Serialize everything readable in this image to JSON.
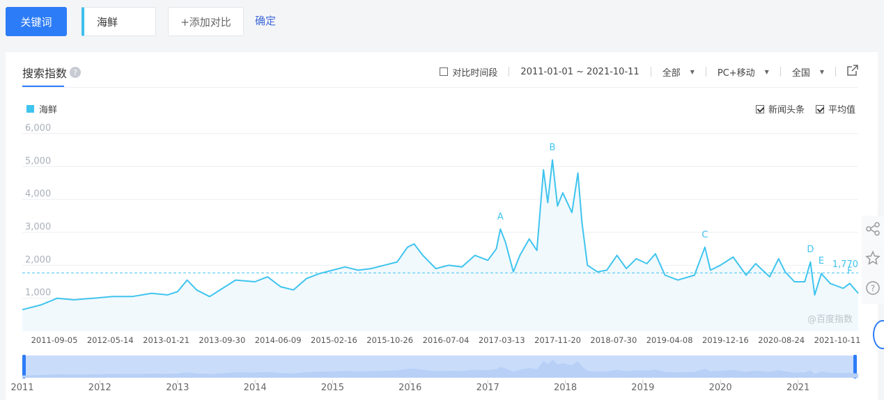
{
  "toolbar": {
    "keyword_tab": "关键词",
    "keyword_value": "海鲜",
    "add_compare": "+添加对比",
    "confirm": "确定"
  },
  "panel": {
    "title": "搜索指数",
    "help_icon": "question-icon",
    "compare_period": "对比时间段",
    "date_range": "2011-01-01 ~ 2021-10-11",
    "source": "全部",
    "device": "PC+移动",
    "region": "全国",
    "export_icon": "external-link-icon",
    "legend": "海鲜",
    "news_option": "新闻头条",
    "average_option": "平均值",
    "watermark": "@百度指数"
  },
  "colors": {
    "accent": "#2d7cf7",
    "series": "#3fc4ee",
    "fill": "#f1f9fd",
    "navigator": "#c9ddfb"
  },
  "chart_data": {
    "type": "area",
    "ylim": [
      0,
      6000
    ],
    "y_ticks": [
      "1,000",
      "2,000",
      "3,000",
      "4,000",
      "5,000",
      "6,000"
    ],
    "x_ticks": [
      "2011-09-05",
      "2012-05-14",
      "2013-01-21",
      "2013-09-30",
      "2014-06-09",
      "2015-02-16",
      "2015-10-26",
      "2016-07-04",
      "2017-03-13",
      "2017-11-20",
      "2018-07-30",
      "2019-04-08",
      "2019-12-16",
      "2020-08-24",
      "2021-10-11"
    ],
    "navigator_years": [
      "2011",
      "2012",
      "2013",
      "2014",
      "2015",
      "2016",
      "2017",
      "2018",
      "2019",
      "2020",
      "2021"
    ],
    "average": 1770,
    "average_label": "1,770",
    "series": [
      {
        "name": "海鲜",
        "points": [
          [
            "2011-01-01",
            650
          ],
          [
            "2011-04-01",
            800
          ],
          [
            "2011-06-15",
            1000
          ],
          [
            "2011-09-01",
            950
          ],
          [
            "2011-12-01",
            1000
          ],
          [
            "2012-03-01",
            1050
          ],
          [
            "2012-06-01",
            1050
          ],
          [
            "2012-09-01",
            1150
          ],
          [
            "2012-11-15",
            1100
          ],
          [
            "2013-01-01",
            1200
          ],
          [
            "2013-02-15",
            1550
          ],
          [
            "2013-04-01",
            1250
          ],
          [
            "2013-06-01",
            1050
          ],
          [
            "2013-08-01",
            1300
          ],
          [
            "2013-10-01",
            1550
          ],
          [
            "2014-01-01",
            1500
          ],
          [
            "2014-03-01",
            1650
          ],
          [
            "2014-05-01",
            1350
          ],
          [
            "2014-07-01",
            1250
          ],
          [
            "2014-09-01",
            1600
          ],
          [
            "2014-11-01",
            1750
          ],
          [
            "2015-01-01",
            1850
          ],
          [
            "2015-03-01",
            1950
          ],
          [
            "2015-05-01",
            1850
          ],
          [
            "2015-07-01",
            1900
          ],
          [
            "2015-09-01",
            2000
          ],
          [
            "2015-11-01",
            2100
          ],
          [
            "2015-12-20",
            2550
          ],
          [
            "2016-01-20",
            2650
          ],
          [
            "2016-03-01",
            2300
          ],
          [
            "2016-05-01",
            1900
          ],
          [
            "2016-07-01",
            2000
          ],
          [
            "2016-09-01",
            1950
          ],
          [
            "2016-11-01",
            2300
          ],
          [
            "2017-01-01",
            2150
          ],
          [
            "2017-02-10",
            2500
          ],
          [
            "2017-03-01",
            3100
          ],
          [
            "2017-03-25",
            2700
          ],
          [
            "2017-05-01",
            1800
          ],
          [
            "2017-06-01",
            2300
          ],
          [
            "2017-07-15",
            2800
          ],
          [
            "2017-08-20",
            2450
          ],
          [
            "2017-09-20",
            4900
          ],
          [
            "2017-10-10",
            3900
          ],
          [
            "2017-11-01",
            5200
          ],
          [
            "2017-11-25",
            3800
          ],
          [
            "2017-12-20",
            4200
          ],
          [
            "2018-02-01",
            3600
          ],
          [
            "2018-03-01",
            4800
          ],
          [
            "2018-03-20",
            3300
          ],
          [
            "2018-04-15",
            2000
          ],
          [
            "2018-06-01",
            1800
          ],
          [
            "2018-07-15",
            1850
          ],
          [
            "2018-09-01",
            2300
          ],
          [
            "2018-10-15",
            1900
          ],
          [
            "2018-12-01",
            2200
          ],
          [
            "2019-01-20",
            2050
          ],
          [
            "2019-03-01",
            2350
          ],
          [
            "2019-04-15",
            1700
          ],
          [
            "2019-06-15",
            1550
          ],
          [
            "2019-09-01",
            1700
          ],
          [
            "2019-10-20",
            2550
          ],
          [
            "2019-11-15",
            1850
          ],
          [
            "2020-01-01",
            2000
          ],
          [
            "2020-03-01",
            2250
          ],
          [
            "2020-05-01",
            1700
          ],
          [
            "2020-06-15",
            2050
          ],
          [
            "2020-08-20",
            1650
          ],
          [
            "2020-10-01",
            2200
          ],
          [
            "2020-11-01",
            1800
          ],
          [
            "2020-12-15",
            1500
          ],
          [
            "2021-02-01",
            1500
          ],
          [
            "2021-02-28",
            2100
          ],
          [
            "2021-03-20",
            1100
          ],
          [
            "2021-04-20",
            1750
          ],
          [
            "2021-06-01",
            1450
          ],
          [
            "2021-08-01",
            1300
          ],
          [
            "2021-09-01",
            1450
          ],
          [
            "2021-10-11",
            1150
          ]
        ]
      }
    ],
    "annotations": [
      {
        "label": "A",
        "date": "2017-03-01"
      },
      {
        "label": "B",
        "date": "2017-11-01"
      },
      {
        "label": "C",
        "date": "2019-10-20"
      },
      {
        "label": "D",
        "date": "2021-02-28"
      },
      {
        "label": "E",
        "date": "2021-04-20"
      },
      {
        "label": "F",
        "date": "2021-09-01"
      }
    ]
  }
}
